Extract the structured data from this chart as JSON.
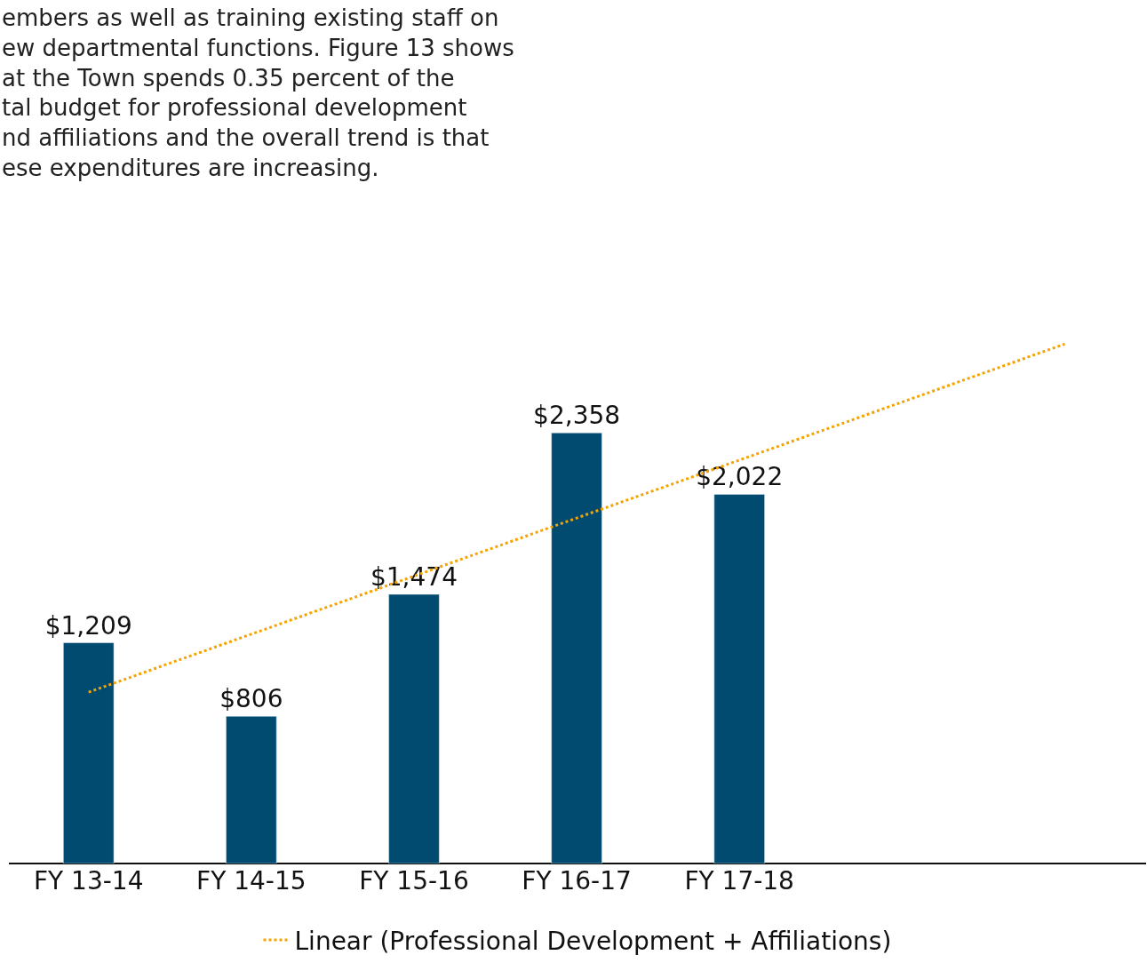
{
  "chart_data": {
    "type": "bar",
    "annotations": [
      "embers as well as training existing staff on\new departmental functions. Figure 13 shows\nat the Town spends 0.35 percent of the\ntal budget for professional development\nnd affiliations and the overall trend is that\nese expenditures are increasing."
    ],
    "categories": [
      "FY 13-14",
      "FY 14-15",
      "FY 15-16",
      "FY 16-17",
      "FY 17-18",
      null,
      null
    ],
    "series": [
      {
        "color": "#024b70",
        "values": [
          1209,
          806,
          1474,
          2358,
          2022,
          null,
          null
        ],
        "value_labels": [
          "$1,209",
          "$806",
          "$1,474",
          "$2,358",
          "$2,022",
          null,
          null
        ]
      },
      {
        "type": "line",
        "name": "Linear (Professional Development + Affiliations)",
        "color": "#f5a300",
        "line_style": "dotted",
        "values": [
          938,
          1256,
          1574,
          1892,
          2209,
          2527,
          2845
        ]
      }
    ],
    "legend": "bottom"
  }
}
